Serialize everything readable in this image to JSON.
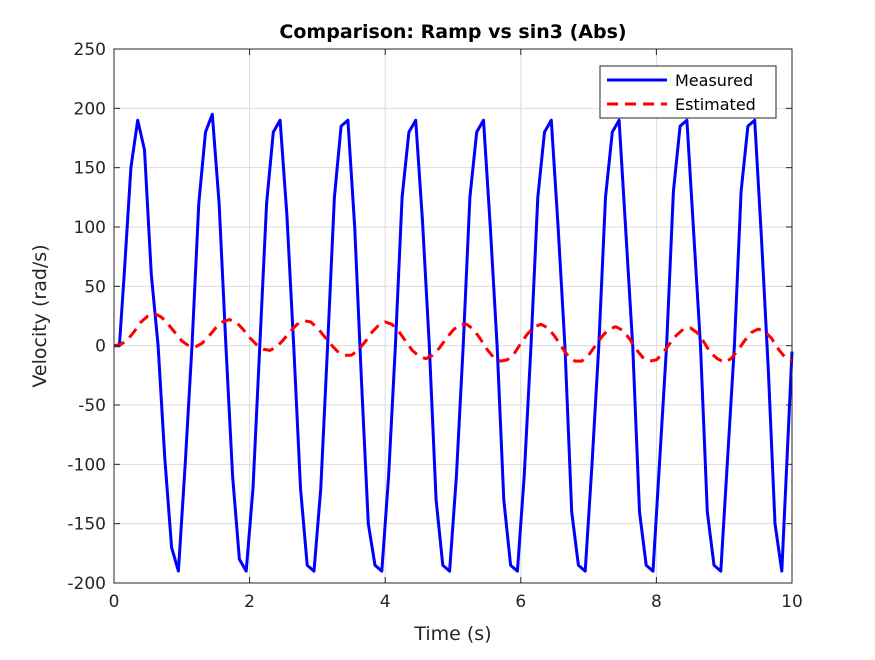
{
  "chart_data": {
    "type": "line",
    "title": "Comparison: Ramp vs sin3 (Abs)",
    "xlabel": "Time (s)",
    "ylabel": "Velocity (rad/s)",
    "xlim": [
      0,
      10
    ],
    "ylim": [
      -200,
      250
    ],
    "xticks": [
      0,
      2,
      4,
      6,
      8,
      10
    ],
    "yticks": [
      -200,
      -150,
      -100,
      -50,
      0,
      50,
      100,
      150,
      200,
      250
    ],
    "grid": true,
    "legend_position": "top-right",
    "series": [
      {
        "name": "Measured",
        "color": "#0000ff",
        "style": "solid",
        "x": [
          0,
          0.08,
          0.15,
          0.25,
          0.35,
          0.45,
          0.55,
          0.65,
          0.75,
          0.85,
          0.95,
          1.05,
          1.15,
          1.25,
          1.35,
          1.45,
          1.55,
          1.65,
          1.75,
          1.85,
          1.95,
          2.05,
          2.15,
          2.25,
          2.35,
          2.45,
          2.55,
          2.65,
          2.75,
          2.85,
          2.95,
          3.05,
          3.15,
          3.25,
          3.35,
          3.45,
          3.55,
          3.65,
          3.75,
          3.85,
          3.95,
          4.05,
          4.15,
          4.25,
          4.35,
          4.45,
          4.55,
          4.65,
          4.75,
          4.85,
          4.95,
          5.05,
          5.15,
          5.25,
          5.35,
          5.45,
          5.55,
          5.65,
          5.75,
          5.85,
          5.95,
          6.05,
          6.15,
          6.25,
          6.35,
          6.45,
          6.55,
          6.65,
          6.75,
          6.85,
          6.95,
          7.05,
          7.15,
          7.25,
          7.35,
          7.45,
          7.55,
          7.65,
          7.75,
          7.85,
          7.95,
          8.05,
          8.15,
          8.25,
          8.35,
          8.45,
          8.55,
          8.65,
          8.75,
          8.85,
          8.95,
          9.05,
          9.15,
          9.25,
          9.35,
          9.45,
          9.55,
          9.65,
          9.75,
          9.85,
          10.0
        ],
        "y": [
          0,
          0,
          60,
          150,
          190,
          165,
          60,
          0,
          -95,
          -170,
          -190,
          -100,
          0,
          120,
          180,
          195,
          120,
          0,
          -110,
          -180,
          -190,
          -120,
          0,
          120,
          180,
          190,
          110,
          0,
          -120,
          -185,
          -190,
          -120,
          0,
          125,
          185,
          190,
          100,
          -30,
          -150,
          -185,
          -190,
          -110,
          0,
          125,
          180,
          190,
          105,
          0,
          -130,
          -185,
          -190,
          -110,
          0,
          125,
          180,
          190,
          100,
          0,
          -130,
          -185,
          -190,
          -110,
          0,
          125,
          180,
          190,
          100,
          0,
          -140,
          -185,
          -190,
          -100,
          0,
          125,
          180,
          190,
          95,
          0,
          -140,
          -185,
          -190,
          -95,
          0,
          130,
          185,
          190,
          95,
          0,
          -140,
          -185,
          -190,
          -95,
          0,
          130,
          185,
          190,
          90,
          -20,
          -150,
          -190,
          -5
        ]
      },
      {
        "name": "Estimated",
        "color": "#ff0000",
        "style": "dashed",
        "x": [
          0,
          0.1,
          0.2,
          0.3,
          0.4,
          0.5,
          0.6,
          0.7,
          0.8,
          0.9,
          1.0,
          1.1,
          1.2,
          1.3,
          1.4,
          1.5,
          1.6,
          1.7,
          1.8,
          1.9,
          2.0,
          2.1,
          2.2,
          2.3,
          2.4,
          2.5,
          2.6,
          2.7,
          2.8,
          2.9,
          3.0,
          3.1,
          3.2,
          3.3,
          3.4,
          3.5,
          3.6,
          3.7,
          3.8,
          3.9,
          4.0,
          4.1,
          4.2,
          4.3,
          4.4,
          4.5,
          4.6,
          4.7,
          4.8,
          4.9,
          5.0,
          5.1,
          5.2,
          5.3,
          5.4,
          5.5,
          5.6,
          5.7,
          5.8,
          5.9,
          6.0,
          6.1,
          6.2,
          6.3,
          6.4,
          6.5,
          6.6,
          6.7,
          6.8,
          6.9,
          7.0,
          7.1,
          7.2,
          7.3,
          7.4,
          7.5,
          7.6,
          7.7,
          7.8,
          7.9,
          8.0,
          8.1,
          8.2,
          8.3,
          8.4,
          8.5,
          8.6,
          8.7,
          8.8,
          8.9,
          9.0,
          9.1,
          9.2,
          9.3,
          9.4,
          9.5,
          9.6,
          9.7,
          9.8,
          9.9,
          10.0
        ],
        "y": [
          0,
          1,
          5,
          12,
          20,
          25,
          27,
          24,
          18,
          11,
          4,
          0,
          -1,
          2,
          8,
          15,
          20,
          22,
          20,
          14,
          7,
          1,
          -3,
          -4,
          -1,
          5,
          12,
          18,
          21,
          20,
          15,
          8,
          1,
          -5,
          -8,
          -8,
          -4,
          3,
          11,
          17,
          20,
          18,
          12,
          4,
          -4,
          -9,
          -11,
          -8,
          -2,
          6,
          13,
          18,
          18,
          14,
          6,
          -3,
          -10,
          -13,
          -12,
          -7,
          2,
          10,
          16,
          18,
          15,
          8,
          -1,
          -9,
          -13,
          -13,
          -8,
          0,
          8,
          14,
          16,
          13,
          6,
          -3,
          -10,
          -13,
          -12,
          -6,
          2,
          9,
          14,
          15,
          11,
          3,
          -6,
          -11,
          -14,
          -11,
          -4,
          4,
          11,
          14,
          12,
          6,
          -3,
          -10,
          -13
        ]
      }
    ]
  }
}
